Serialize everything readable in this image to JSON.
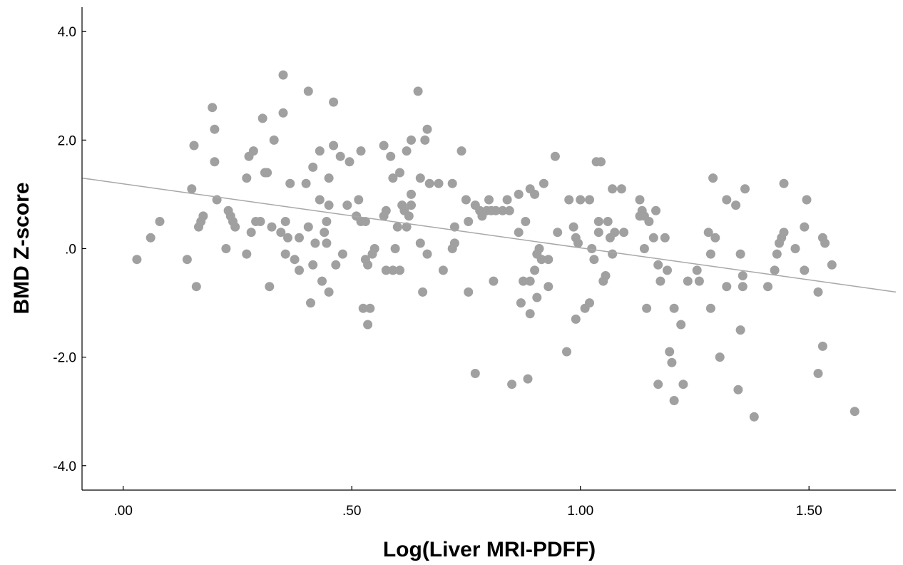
{
  "chart_data": {
    "type": "scatter",
    "xlabel": "Log(Liver MRI-PDFF)",
    "ylabel": "BMD Z-score",
    "xlim": [
      -0.09,
      1.69
    ],
    "ylim": [
      -4.45,
      4.45
    ],
    "x_ticks": [
      0.0,
      0.5,
      1.0,
      1.5
    ],
    "x_tick_labels": [
      ".00",
      ".50",
      "1.00",
      "1.50"
    ],
    "y_ticks": [
      4.0,
      2.0,
      0.0,
      -2.0,
      -4.0
    ],
    "y_tick_labels": [
      "4.0",
      "2.0",
      ".0",
      "-2.0",
      "-4.0"
    ],
    "grid": false,
    "colors": {
      "points": "#a0a0a0",
      "fit_line": "#a8a8a8",
      "axes": "#000000"
    },
    "fit_line": {
      "x": [
        -0.09,
        1.69
      ],
      "y": [
        1.3,
        -0.8
      ]
    },
    "points": [
      [
        0.03,
        -0.2
      ],
      [
        0.06,
        0.2
      ],
      [
        0.08,
        0.5
      ],
      [
        0.14,
        -0.2
      ],
      [
        0.15,
        1.1
      ],
      [
        0.155,
        1.9
      ],
      [
        0.16,
        -0.7
      ],
      [
        0.165,
        0.4
      ],
      [
        0.17,
        0.5
      ],
      [
        0.175,
        0.6
      ],
      [
        0.195,
        2.6
      ],
      [
        0.2,
        2.2
      ],
      [
        0.2,
        1.6
      ],
      [
        0.205,
        0.9
      ],
      [
        0.225,
        0.0
      ],
      [
        0.23,
        0.7
      ],
      [
        0.235,
        0.6
      ],
      [
        0.24,
        0.5
      ],
      [
        0.245,
        0.4
      ],
      [
        0.27,
        -0.1
      ],
      [
        0.27,
        1.3
      ],
      [
        0.275,
        1.7
      ],
      [
        0.28,
        0.3
      ],
      [
        0.285,
        1.8
      ],
      [
        0.29,
        0.5
      ],
      [
        0.3,
        0.5
      ],
      [
        0.305,
        2.4
      ],
      [
        0.31,
        1.4
      ],
      [
        0.315,
        1.4
      ],
      [
        0.32,
        -0.7
      ],
      [
        0.325,
        0.4
      ],
      [
        0.33,
        2.0
      ],
      [
        0.345,
        0.3
      ],
      [
        0.35,
        3.2
      ],
      [
        0.35,
        2.5
      ],
      [
        0.355,
        0.5
      ],
      [
        0.36,
        0.2
      ],
      [
        0.355,
        -0.1
      ],
      [
        0.365,
        1.2
      ],
      [
        0.375,
        -0.2
      ],
      [
        0.385,
        -0.4
      ],
      [
        0.385,
        0.2
      ],
      [
        0.4,
        1.2
      ],
      [
        0.405,
        2.9
      ],
      [
        0.405,
        0.4
      ],
      [
        0.41,
        -1.0
      ],
      [
        0.415,
        -0.3
      ],
      [
        0.415,
        1.5
      ],
      [
        0.42,
        0.1
      ],
      [
        0.43,
        1.8
      ],
      [
        0.43,
        0.9
      ],
      [
        0.435,
        -0.6
      ],
      [
        0.44,
        0.3
      ],
      [
        0.445,
        0.1
      ],
      [
        0.445,
        0.5
      ],
      [
        0.45,
        1.3
      ],
      [
        0.45,
        0.8
      ],
      [
        0.45,
        -0.8
      ],
      [
        0.46,
        1.9
      ],
      [
        0.46,
        2.7
      ],
      [
        0.465,
        -0.3
      ],
      [
        0.475,
        1.7
      ],
      [
        0.48,
        -0.1
      ],
      [
        0.49,
        0.8
      ],
      [
        0.495,
        1.6
      ],
      [
        0.51,
        0.6
      ],
      [
        0.515,
        0.9
      ],
      [
        0.52,
        1.8
      ],
      [
        0.52,
        0.5
      ],
      [
        0.525,
        -1.1
      ],
      [
        0.53,
        -0.2
      ],
      [
        0.53,
        0.5
      ],
      [
        0.535,
        -0.3
      ],
      [
        0.535,
        -1.4
      ],
      [
        0.54,
        -1.1
      ],
      [
        0.545,
        -0.1
      ],
      [
        0.55,
        0.0
      ],
      [
        0.57,
        1.9
      ],
      [
        0.57,
        0.6
      ],
      [
        0.575,
        0.7
      ],
      [
        0.575,
        -0.4
      ],
      [
        0.585,
        1.7
      ],
      [
        0.59,
        -0.4
      ],
      [
        0.59,
        1.3
      ],
      [
        0.595,
        0.0
      ],
      [
        0.6,
        0.4
      ],
      [
        0.605,
        1.4
      ],
      [
        0.605,
        -0.4
      ],
      [
        0.61,
        0.8
      ],
      [
        0.615,
        0.7
      ],
      [
        0.62,
        0.4
      ],
      [
        0.62,
        1.8
      ],
      [
        0.625,
        0.6
      ],
      [
        0.63,
        0.8
      ],
      [
        0.63,
        1.0
      ],
      [
        0.63,
        2.0
      ],
      [
        0.645,
        2.9
      ],
      [
        0.65,
        1.3
      ],
      [
        0.65,
        0.1
      ],
      [
        0.655,
        -0.8
      ],
      [
        0.66,
        2.0
      ],
      [
        0.665,
        -0.1
      ],
      [
        0.665,
        2.2
      ],
      [
        0.67,
        1.2
      ],
      [
        0.69,
        1.2
      ],
      [
        0.7,
        -0.4
      ],
      [
        0.72,
        1.2
      ],
      [
        0.72,
        0.0
      ],
      [
        0.725,
        0.1
      ],
      [
        0.725,
        0.4
      ],
      [
        0.74,
        1.8
      ],
      [
        0.75,
        0.9
      ],
      [
        0.755,
        0.5
      ],
      [
        0.755,
        -0.8
      ],
      [
        0.77,
        -2.3
      ],
      [
        0.77,
        0.8
      ],
      [
        0.78,
        0.7
      ],
      [
        0.785,
        0.6
      ],
      [
        0.795,
        0.7
      ],
      [
        0.8,
        0.9
      ],
      [
        0.805,
        0.7
      ],
      [
        0.81,
        -0.6
      ],
      [
        0.815,
        0.7
      ],
      [
        0.83,
        0.7
      ],
      [
        0.84,
        0.9
      ],
      [
        0.845,
        0.7
      ],
      [
        0.85,
        -2.5
      ],
      [
        0.865,
        1.0
      ],
      [
        0.865,
        0.3
      ],
      [
        0.87,
        -1.0
      ],
      [
        0.875,
        -0.6
      ],
      [
        0.88,
        0.5
      ],
      [
        0.885,
        -2.4
      ],
      [
        0.89,
        1.1
      ],
      [
        0.89,
        -0.6
      ],
      [
        0.89,
        -1.2
      ],
      [
        0.9,
        1.0
      ],
      [
        0.9,
        -0.4
      ],
      [
        0.905,
        -0.9
      ],
      [
        0.905,
        -0.1
      ],
      [
        0.91,
        0.0
      ],
      [
        0.915,
        -0.2
      ],
      [
        0.92,
        1.2
      ],
      [
        0.93,
        -0.7
      ],
      [
        0.93,
        -0.2
      ],
      [
        0.945,
        1.7
      ],
      [
        0.95,
        0.3
      ],
      [
        0.97,
        -1.9
      ],
      [
        0.975,
        0.9
      ],
      [
        0.985,
        0.4
      ],
      [
        0.99,
        0.2
      ],
      [
        0.99,
        -1.3
      ],
      [
        0.995,
        0.1
      ],
      [
        1.0,
        0.9
      ],
      [
        1.01,
        -1.1
      ],
      [
        1.02,
        0.9
      ],
      [
        1.02,
        -1.0
      ],
      [
        1.025,
        0.0
      ],
      [
        1.03,
        -0.2
      ],
      [
        1.035,
        1.6
      ],
      [
        1.04,
        0.5
      ],
      [
        1.04,
        0.3
      ],
      [
        1.045,
        1.6
      ],
      [
        1.05,
        -0.6
      ],
      [
        1.055,
        -0.5
      ],
      [
        1.06,
        0.5
      ],
      [
        1.065,
        0.2
      ],
      [
        1.07,
        -0.1
      ],
      [
        1.07,
        1.1
      ],
      [
        1.075,
        0.3
      ],
      [
        1.09,
        1.1
      ],
      [
        1.095,
        0.3
      ],
      [
        1.13,
        0.9
      ],
      [
        1.13,
        0.6
      ],
      [
        1.135,
        0.7
      ],
      [
        1.14,
        0.6
      ],
      [
        1.14,
        0.0
      ],
      [
        1.145,
        -1.1
      ],
      [
        1.15,
        0.5
      ],
      [
        1.16,
        0.2
      ],
      [
        1.165,
        0.7
      ],
      [
        1.17,
        -0.3
      ],
      [
        1.17,
        -2.5
      ],
      [
        1.175,
        -0.6
      ],
      [
        1.185,
        0.2
      ],
      [
        1.19,
        -0.4
      ],
      [
        1.195,
        -1.9
      ],
      [
        1.2,
        -2.1
      ],
      [
        1.205,
        -1.1
      ],
      [
        1.205,
        -2.8
      ],
      [
        1.22,
        -1.4
      ],
      [
        1.225,
        -2.5
      ],
      [
        1.235,
        -0.6
      ],
      [
        1.255,
        -0.4
      ],
      [
        1.26,
        -0.6
      ],
      [
        1.28,
        0.3
      ],
      [
        1.285,
        -0.1
      ],
      [
        1.285,
        -1.1
      ],
      [
        1.29,
        1.3
      ],
      [
        1.295,
        0.2
      ],
      [
        1.305,
        -2.0
      ],
      [
        1.32,
        -0.7
      ],
      [
        1.32,
        0.9
      ],
      [
        1.34,
        0.8
      ],
      [
        1.345,
        -2.6
      ],
      [
        1.35,
        -0.1
      ],
      [
        1.35,
        -1.5
      ],
      [
        1.355,
        -0.5
      ],
      [
        1.355,
        -0.7
      ],
      [
        1.36,
        1.1
      ],
      [
        1.38,
        -3.1
      ],
      [
        1.41,
        -0.7
      ],
      [
        1.425,
        -0.4
      ],
      [
        1.43,
        -0.1
      ],
      [
        1.435,
        0.1
      ],
      [
        1.44,
        0.2
      ],
      [
        1.445,
        0.3
      ],
      [
        1.445,
        1.2
      ],
      [
        1.47,
        0.0
      ],
      [
        1.49,
        -0.4
      ],
      [
        1.49,
        0.4
      ],
      [
        1.495,
        0.9
      ],
      [
        1.52,
        -2.3
      ],
      [
        1.52,
        -0.8
      ],
      [
        1.53,
        0.2
      ],
      [
        1.53,
        -1.8
      ],
      [
        1.535,
        0.1
      ],
      [
        1.55,
        -0.3
      ],
      [
        1.6,
        -3.0
      ]
    ]
  }
}
